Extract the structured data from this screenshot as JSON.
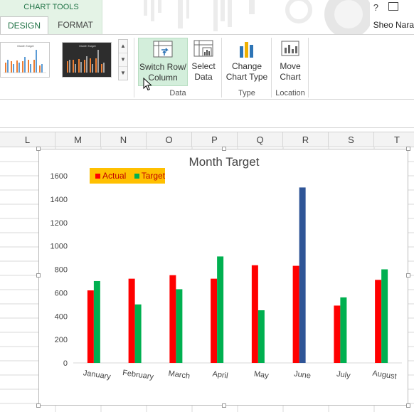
{
  "ribbon": {
    "context_label": "CHART TOOLS",
    "tabs": [
      {
        "label": "DESIGN",
        "active": true
      },
      {
        "label": "FORMAT",
        "active": false
      }
    ],
    "help_label": "?",
    "user_name": "Sheo Nara",
    "buttons": {
      "switch_line1": "Switch Row/",
      "switch_line2": "Column",
      "select_line1": "Select",
      "select_line2": "Data",
      "change_line1": "Change",
      "change_line2": "Chart Type",
      "move_line1": "Move",
      "move_line2": "Chart"
    },
    "groups": {
      "data": "Data",
      "type": "Type",
      "location": "Location"
    },
    "gallery": {
      "thumb1_title": "Month Target",
      "thumb2_title": "Month Target"
    }
  },
  "columns": [
    "L",
    "M",
    "N",
    "O",
    "P",
    "Q",
    "R",
    "S",
    "T"
  ],
  "colors": {
    "actual": "#ff0000",
    "target": "#00b050",
    "highlight": "#2f5597",
    "legend_bg": "#ffc000",
    "accent": "#217346"
  },
  "chart_data": {
    "type": "bar",
    "title": "Month Target",
    "categories": [
      "January",
      "February",
      "March",
      "April",
      "May",
      "June",
      "July",
      "August"
    ],
    "series": [
      {
        "name": "Actual",
        "values": [
          620,
          720,
          750,
          720,
          835,
          830,
          490,
          710
        ]
      },
      {
        "name": "Target",
        "values": [
          700,
          500,
          630,
          910,
          450,
          1500,
          560,
          800
        ]
      }
    ],
    "highlighted_point": {
      "series": "Target",
      "category": "June",
      "color": "#2f5597"
    },
    "yticks": [
      0,
      200,
      400,
      600,
      800,
      1000,
      1200,
      1400,
      1600
    ],
    "ylim": [
      0,
      1600
    ],
    "grid": false,
    "legend_position": "top-left"
  }
}
